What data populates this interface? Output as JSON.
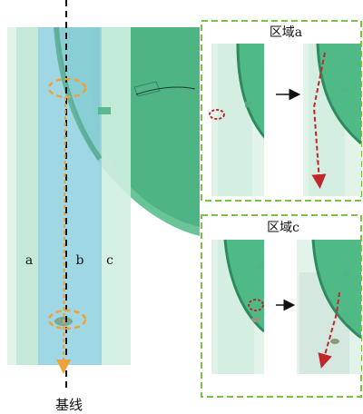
{
  "figure": {
    "strip_labels": [
      "a",
      "b",
      "c"
    ],
    "baseline_label": "基线",
    "panels": [
      {
        "title": "区域a"
      },
      {
        "title": "区域c"
      }
    ]
  },
  "colors": {
    "green": "#4fba86",
    "green_light": "#bfe6d2",
    "green_pale": "#e2f3ea",
    "blue_strip": "#8fd0df",
    "orange": "#f0a23a",
    "red": "#c0262b",
    "dash_border": "#7cc04a"
  }
}
